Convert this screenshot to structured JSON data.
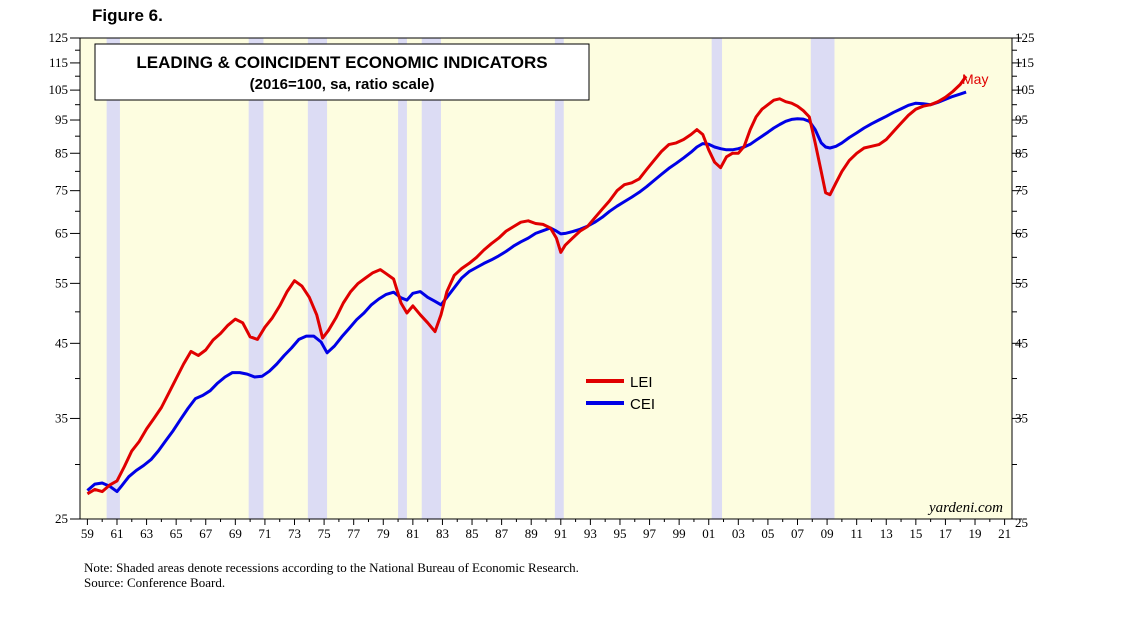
{
  "figure_label": "Figure 6.",
  "notes": {
    "note": "Note: Shaded areas denote recessions according to the National Bureau of Economic Research.",
    "source": "Source: Conference Board."
  },
  "colors": {
    "plot_bg": "#fdfde0",
    "recession": "#dcdcf4",
    "lei": "#e00000",
    "cei": "#0000e6"
  },
  "chart_data": {
    "type": "line",
    "title": "LEADING & COINCIDENT ECONOMIC INDICATORS",
    "subtitle": "(2016=100, sa, ratio scale)",
    "watermark": "yardeni.com",
    "end_label": "May",
    "y_scale": "log",
    "ylim": [
      25,
      125
    ],
    "y_ticks": [
      25,
      35,
      45,
      55,
      65,
      75,
      85,
      95,
      105,
      115,
      125
    ],
    "y_tick_labels": [
      "25",
      "35",
      "45",
      "55",
      "65",
      "75",
      "85",
      "95",
      "105",
      "115",
      "125"
    ],
    "xlim": [
      1958.5,
      2021.5
    ],
    "x_tick_labels": [
      "59",
      "61",
      "63",
      "65",
      "67",
      "69",
      "71",
      "73",
      "75",
      "77",
      "79",
      "81",
      "83",
      "85",
      "87",
      "89",
      "91",
      "93",
      "95",
      "97",
      "99",
      "01",
      "03",
      "05",
      "07",
      "09",
      "11",
      "13",
      "15",
      "17",
      "19",
      "21"
    ],
    "recessions": [
      [
        1960.3,
        1961.2
      ],
      [
        1969.9,
        1970.9
      ],
      [
        1973.9,
        1975.2
      ],
      [
        1980.0,
        1980.6
      ],
      [
        1981.6,
        1982.9
      ],
      [
        1990.6,
        1991.2
      ],
      [
        2001.2,
        2001.9
      ],
      [
        2007.9,
        2009.5
      ]
    ],
    "legend": {
      "position": "center",
      "entries": [
        "LEI",
        "CEI"
      ]
    },
    "series": [
      {
        "name": "LEI",
        "color": "#e00000",
        "x": [
          1959.0,
          1959.5,
          1960.0,
          1960.5,
          1961.0,
          1961.5,
          1962.0,
          1962.5,
          1963.0,
          1963.5,
          1964.0,
          1964.5,
          1965.0,
          1965.5,
          1966.0,
          1966.5,
          1967.0,
          1967.5,
          1968.0,
          1968.5,
          1969.0,
          1969.5,
          1970.0,
          1970.5,
          1971.0,
          1971.5,
          1972.0,
          1972.5,
          1973.0,
          1973.5,
          1974.0,
          1974.5,
          1974.9,
          1975.3,
          1975.8,
          1976.3,
          1976.8,
          1977.3,
          1977.8,
          1978.3,
          1978.8,
          1979.2,
          1979.7,
          1980.2,
          1980.6,
          1981.0,
          1981.5,
          1982.0,
          1982.5,
          1982.9,
          1983.3,
          1983.8,
          1984.3,
          1984.8,
          1985.3,
          1985.8,
          1986.3,
          1986.8,
          1987.3,
          1987.8,
          1988.3,
          1988.8,
          1989.3,
          1989.8,
          1990.3,
          1990.7,
          1991.0,
          1991.3,
          1991.8,
          1992.3,
          1992.8,
          1993.3,
          1993.8,
          1994.3,
          1994.8,
          1995.3,
          1995.8,
          1996.3,
          1996.8,
          1997.3,
          1997.8,
          1998.3,
          1998.8,
          1999.3,
          1999.8,
          2000.2,
          2000.6,
          2001.0,
          2001.4,
          2001.8,
          2002.2,
          2002.6,
          2003.0,
          2003.4,
          2003.8,
          2004.2,
          2004.6,
          2005.0,
          2005.4,
          2005.8,
          2006.2,
          2006.6,
          2007.0,
          2007.4,
          2007.8,
          2008.2,
          2008.6,
          2008.9,
          2009.2,
          2009.6,
          2010.0,
          2010.5,
          2011.0,
          2011.5,
          2012.0,
          2012.5,
          2013.0,
          2013.5,
          2014.0,
          2014.5,
          2015.0,
          2015.5,
          2016.0,
          2016.5,
          2017.0,
          2017.5,
          2018.0,
          2018.4
        ],
        "values": [
          27.2,
          27.6,
          27.4,
          28.0,
          28.4,
          29.8,
          31.4,
          32.4,
          33.8,
          35.0,
          36.3,
          38.1,
          40.0,
          42.0,
          43.8,
          43.2,
          44.0,
          45.5,
          46.5,
          47.8,
          48.8,
          48.2,
          46.0,
          45.6,
          47.5,
          49.0,
          51.0,
          53.5,
          55.5,
          54.5,
          52.5,
          49.5,
          45.8,
          47.0,
          49.0,
          51.5,
          53.5,
          55.0,
          56.0,
          57.0,
          57.6,
          56.8,
          55.8,
          51.5,
          49.8,
          51.0,
          49.5,
          48.2,
          46.8,
          49.5,
          53.5,
          56.5,
          57.8,
          58.8,
          60.0,
          61.5,
          62.8,
          64.0,
          65.5,
          66.5,
          67.5,
          67.8,
          67.2,
          67.0,
          66.2,
          64.0,
          61.0,
          62.5,
          64.0,
          65.5,
          66.5,
          68.5,
          70.5,
          72.5,
          75.0,
          76.5,
          77.0,
          78.0,
          80.5,
          83.0,
          85.5,
          87.5,
          88.0,
          89.0,
          90.5,
          92.0,
          90.5,
          86.0,
          82.5,
          81.0,
          84.0,
          85.0,
          85.0,
          87.0,
          92.0,
          96.0,
          98.5,
          100.0,
          101.5,
          102.0,
          101.0,
          100.5,
          99.5,
          98.0,
          96.0,
          88.0,
          80.0,
          74.5,
          74.0,
          77.0,
          80.0,
          83.0,
          85.0,
          86.5,
          87.0,
          87.5,
          89.0,
          91.5,
          94.0,
          96.5,
          98.5,
          99.5,
          100.0,
          101.0,
          102.5,
          104.5,
          107.0,
          110.0
        ]
      },
      {
        "name": "CEI",
        "color": "#0000e6",
        "x": [
          1959.0,
          1959.5,
          1960.0,
          1960.5,
          1961.0,
          1961.3,
          1961.8,
          1962.3,
          1962.8,
          1963.3,
          1963.8,
          1964.3,
          1964.8,
          1965.3,
          1965.8,
          1966.3,
          1966.8,
          1967.3,
          1967.8,
          1968.3,
          1968.8,
          1969.3,
          1969.8,
          1970.3,
          1970.8,
          1971.3,
          1971.8,
          1972.3,
          1972.8,
          1973.3,
          1973.8,
          1974.3,
          1974.8,
          1975.2,
          1975.7,
          1976.2,
          1976.7,
          1977.2,
          1977.7,
          1978.2,
          1978.7,
          1979.2,
          1979.7,
          1980.2,
          1980.6,
          1981.0,
          1981.5,
          1982.0,
          1982.5,
          1982.9,
          1983.3,
          1983.8,
          1984.3,
          1984.8,
          1985.3,
          1985.8,
          1986.3,
          1986.8,
          1987.3,
          1987.8,
          1988.3,
          1988.8,
          1989.3,
          1989.8,
          1990.3,
          1990.7,
          1991.0,
          1991.3,
          1991.8,
          1992.3,
          1992.8,
          1993.3,
          1993.8,
          1994.3,
          1994.8,
          1995.3,
          1995.8,
          1996.3,
          1996.8,
          1997.3,
          1997.8,
          1998.3,
          1998.8,
          1999.3,
          1999.8,
          2000.2,
          2000.6,
          2001.0,
          2001.4,
          2001.8,
          2002.2,
          2002.6,
          2003.0,
          2003.4,
          2003.8,
          2004.2,
          2004.6,
          2005.0,
          2005.4,
          2005.8,
          2006.2,
          2006.6,
          2007.0,
          2007.4,
          2007.8,
          2008.2,
          2008.6,
          2008.9,
          2009.2,
          2009.6,
          2010.0,
          2010.5,
          2011.0,
          2011.5,
          2012.0,
          2012.5,
          2013.0,
          2013.5,
          2014.0,
          2014.5,
          2015.0,
          2015.5,
          2016.0,
          2016.5,
          2017.0,
          2017.5,
          2018.0,
          2018.4
        ],
        "values": [
          27.5,
          28.1,
          28.2,
          27.9,
          27.4,
          27.9,
          28.8,
          29.4,
          29.9,
          30.5,
          31.4,
          32.5,
          33.6,
          34.9,
          36.2,
          37.4,
          37.8,
          38.4,
          39.4,
          40.2,
          40.8,
          40.8,
          40.6,
          40.2,
          40.3,
          41.0,
          42.0,
          43.2,
          44.3,
          45.6,
          46.1,
          46.1,
          45.2,
          43.6,
          44.6,
          46.0,
          47.3,
          48.7,
          49.8,
          51.2,
          52.2,
          53.0,
          53.4,
          52.4,
          52.0,
          53.2,
          53.5,
          52.5,
          51.8,
          51.2,
          52.5,
          54.2,
          56.0,
          57.2,
          58.0,
          58.8,
          59.5,
          60.3,
          61.2,
          62.3,
          63.2,
          64.0,
          65.0,
          65.6,
          66.2,
          65.5,
          64.9,
          65.0,
          65.4,
          65.9,
          66.6,
          67.5,
          68.6,
          70.0,
          71.2,
          72.3,
          73.4,
          74.6,
          76.0,
          77.6,
          79.2,
          80.8,
          82.2,
          83.7,
          85.3,
          86.8,
          87.8,
          87.6,
          86.8,
          86.3,
          86.0,
          86.0,
          86.3,
          86.8,
          87.6,
          88.8,
          90.0,
          91.2,
          92.5,
          93.6,
          94.6,
          95.2,
          95.4,
          95.3,
          94.6,
          92.0,
          88.0,
          86.8,
          86.5,
          87.0,
          88.0,
          89.6,
          91.0,
          92.5,
          93.8,
          95.0,
          96.2,
          97.5,
          98.6,
          99.8,
          100.5,
          100.3,
          100.0,
          100.8,
          101.8,
          102.8,
          103.6,
          104.3
        ]
      }
    ]
  }
}
